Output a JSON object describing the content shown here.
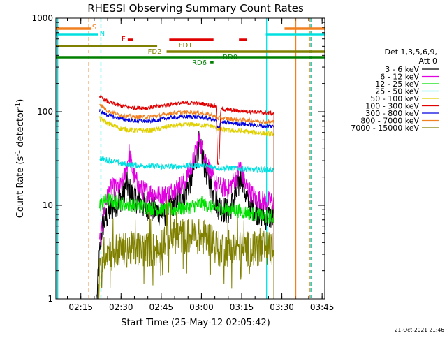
{
  "chart_data": {
    "type": "line",
    "title": "RHESSI Observing Summary Count Rates",
    "xlabel": "Start Time (25-May-12 02:05:42)",
    "ylabel_main": "Count Rate (s",
    "ylabel_sup": "-1",
    "ylabel_tail": " detector",
    "ylabel_end": ")",
    "y_scale": "log",
    "ylim": [
      1,
      1000
    ],
    "y_ticks": [
      {
        "value": 1,
        "label": "1"
      },
      {
        "value": 10,
        "label": "10"
      },
      {
        "value": 100,
        "label": "100"
      },
      {
        "value": 1000,
        "label": "1000"
      }
    ],
    "x_ticks": [
      "02:15",
      "02:30",
      "02:45",
      "03:00",
      "03:15",
      "03:30",
      "03:45"
    ],
    "x_tick_minutes": [
      135,
      150,
      165,
      180,
      195,
      210,
      225
    ],
    "xlim_minutes": [
      125.7,
      226.0
    ],
    "legend_header": [
      "Det 1,3,5,6,9,",
      "Att 0"
    ],
    "footer_date": "21-Oct-2021 21:46",
    "colors": {
      "s_flag": "#f08020",
      "n_flag": "#00e0e0",
      "f_flag": "#e00000",
      "fd_flag": "#808000",
      "rd_flag": "#008000",
      "orbit_dash_orange": "#f08020",
      "orbit_dash_cyan": "#00e0e0"
    },
    "flags": [
      {
        "label": "S",
        "color": "#f08020",
        "label_t": 139.2,
        "label_level": 0,
        "segments": [
          [
            125.7,
            139.0
          ],
          [
            211.0,
            226.0
          ]
        ]
      },
      {
        "label": "N",
        "color": "#00e0e0",
        "label_t": 142.0,
        "label_level": 1,
        "segments": [
          [
            125.7,
            141.5
          ],
          [
            204.0,
            226.0
          ]
        ]
      },
      {
        "label": "F",
        "color": "#e00000",
        "label_t": 150.2,
        "label_level": 2,
        "segments": [
          [
            152.5,
            154.5
          ],
          [
            168.0,
            184.5
          ],
          [
            194.0,
            197.0
          ]
        ]
      },
      {
        "label": "FD1",
        "color": "#808000",
        "label_t": 171.5,
        "label_level": 3,
        "segments": [
          [
            125.7,
            163.5
          ]
        ]
      },
      {
        "label": "FD2",
        "color": "#808000",
        "label_t": 160.0,
        "label_level": 4,
        "segments": [
          [
            167.0,
            226.0
          ]
        ]
      },
      {
        "label": "RD0",
        "color": "#008000",
        "label_t": 188.0,
        "label_level": 5,
        "segments": [
          [
            125.7,
            226.0
          ]
        ]
      },
      {
        "label": "RD6",
        "color": "#008000",
        "label_t": 176.5,
        "label_level": 6,
        "segments": [
          [
            183.3,
            184.5
          ]
        ]
      }
    ],
    "vlines": [
      {
        "t": 126.4,
        "color": "#00e0e0",
        "style": "solid"
      },
      {
        "t": 138.0,
        "color": "#f08020",
        "style": "dash"
      },
      {
        "t": 142.5,
        "color": "#00e0e0",
        "style": "dash"
      },
      {
        "t": 204.3,
        "color": "#00e0e0",
        "style": "solid"
      },
      {
        "t": 215.2,
        "color": "#f08020",
        "style": "solid"
      },
      {
        "t": 220.5,
        "color": "#f08020",
        "style": "dash"
      },
      {
        "t": 220.9,
        "color": "#00e0e0",
        "style": "dash"
      }
    ],
    "series": [
      {
        "name": "3 - 6 keV",
        "color": "#000000",
        "points": [
          [
            141.0,
            1.0
          ],
          [
            142.0,
            3.0
          ],
          [
            143.0,
            6.0
          ],
          [
            146.0,
            9.0
          ],
          [
            150.0,
            12.0
          ],
          [
            152.0,
            17.0
          ],
          [
            154.0,
            13.0
          ],
          [
            158.0,
            10.0
          ],
          [
            162.0,
            9.0
          ],
          [
            166.0,
            8.0
          ],
          [
            170.0,
            11.0
          ],
          [
            174.0,
            14.0
          ],
          [
            177.0,
            22.0
          ],
          [
            179.0,
            45.0
          ],
          [
            181.0,
            28.0
          ],
          [
            184.0,
            14.0
          ],
          [
            186.0,
            10.0
          ],
          [
            190.0,
            8.5
          ],
          [
            193.0,
            13.0
          ],
          [
            195.0,
            22.0
          ],
          [
            197.0,
            11.0
          ],
          [
            200.0,
            9.0
          ],
          [
            204.0,
            7.5
          ],
          [
            207.0,
            7.5
          ]
        ]
      },
      {
        "name": "6 - 12 keV",
        "color": "#e000e0",
        "points": [
          [
            142.0,
            4.0
          ],
          [
            144.0,
            10.0
          ],
          [
            146.0,
            15.0
          ],
          [
            150.0,
            16.0
          ],
          [
            152.0,
            24.0
          ],
          [
            153.0,
            37.0
          ],
          [
            154.5,
            22.0
          ],
          [
            157.0,
            15.0
          ],
          [
            160.0,
            14.0
          ],
          [
            164.0,
            13.0
          ],
          [
            167.0,
            13.0
          ],
          [
            170.0,
            15.0
          ],
          [
            174.0,
            18.0
          ],
          [
            177.0,
            30.0
          ],
          [
            179.0,
            50.0
          ],
          [
            181.0,
            35.0
          ],
          [
            184.0,
            20.0
          ],
          [
            186.0,
            16.0
          ],
          [
            190.0,
            15.0
          ],
          [
            193.0,
            20.0
          ],
          [
            194.5,
            27.0
          ],
          [
            196.0,
            17.0
          ],
          [
            200.0,
            12.0
          ],
          [
            204.0,
            11.0
          ],
          [
            207.0,
            11.0
          ]
        ]
      },
      {
        "name": "12 - 25 keV",
        "color": "#00e000",
        "points": [
          [
            142.0,
            10.0
          ],
          [
            145.0,
            11.5
          ],
          [
            150.0,
            10.5
          ],
          [
            155.0,
            10.0
          ],
          [
            160.0,
            9.5
          ],
          [
            165.0,
            9.0
          ],
          [
            170.0,
            9.0
          ],
          [
            175.0,
            9.5
          ],
          [
            180.0,
            10.5
          ],
          [
            184.0,
            9.5
          ],
          [
            188.0,
            9.0
          ],
          [
            192.0,
            9.0
          ],
          [
            196.0,
            8.5
          ],
          [
            200.0,
            8.0
          ],
          [
            204.0,
            7.5
          ],
          [
            207.0,
            7.5
          ]
        ]
      },
      {
        "name": "25 - 50 keV",
        "color": "#00e0e0",
        "points": [
          [
            142.0,
            32.0
          ],
          [
            146.0,
            30.0
          ],
          [
            150.0,
            28.0
          ],
          [
            155.0,
            27.0
          ],
          [
            160.0,
            26.5
          ],
          [
            165.0,
            26.0
          ],
          [
            170.0,
            26.0
          ],
          [
            175.0,
            26.5
          ],
          [
            180.0,
            27.0
          ],
          [
            184.0,
            25.5
          ],
          [
            186.0,
            25.0
          ],
          [
            190.0,
            25.0
          ],
          [
            195.0,
            24.5
          ],
          [
            200.0,
            24.0
          ],
          [
            204.0,
            24.0
          ],
          [
            207.0,
            24.0
          ]
        ]
      },
      {
        "name": "50 - 100 keV",
        "color": "#e0d000",
        "points": [
          [
            142.0,
            85.0
          ],
          [
            145.0,
            75.0
          ],
          [
            150.0,
            66.0
          ],
          [
            155.0,
            63.0
          ],
          [
            160.0,
            63.0
          ],
          [
            164.0,
            65.0
          ],
          [
            168.0,
            70.0
          ],
          [
            172.0,
            72.0
          ],
          [
            176.0,
            73.0
          ],
          [
            180.0,
            72.0
          ],
          [
            184.0,
            70.0
          ],
          [
            186.5,
            65.0
          ],
          [
            190.0,
            63.0
          ],
          [
            195.0,
            62.0
          ],
          [
            200.0,
            60.0
          ],
          [
            204.0,
            58.0
          ],
          [
            207.0,
            58.0
          ]
        ]
      },
      {
        "name": "100 - 300 keV",
        "color": "#e00000",
        "points": [
          [
            142.0,
            145.0
          ],
          [
            145.0,
            128.0
          ],
          [
            150.0,
            115.0
          ],
          [
            155.0,
            110.0
          ],
          [
            160.0,
            110.0
          ],
          [
            164.0,
            114.0
          ],
          [
            168.0,
            120.0
          ],
          [
            172.0,
            123.0
          ],
          [
            176.0,
            124.0
          ],
          [
            180.0,
            122.0
          ],
          [
            184.0,
            117.0
          ],
          [
            185.5,
            115.0
          ],
          [
            186.0,
            28.0
          ],
          [
            186.6,
            29.0
          ],
          [
            187.2,
            107.0
          ],
          [
            190.0,
            105.0
          ],
          [
            195.0,
            102.0
          ],
          [
            200.0,
            100.0
          ],
          [
            204.0,
            97.0
          ],
          [
            207.0,
            96.0
          ]
        ]
      },
      {
        "name": "300 - 800 keV",
        "color": "#0000e0",
        "points": [
          [
            142.0,
            102.0
          ],
          [
            145.0,
            92.0
          ],
          [
            150.0,
            84.0
          ],
          [
            155.0,
            80.0
          ],
          [
            160.0,
            79.0
          ],
          [
            164.0,
            82.0
          ],
          [
            168.0,
            86.0
          ],
          [
            172.0,
            88.0
          ],
          [
            176.0,
            89.0
          ],
          [
            180.0,
            87.0
          ],
          [
            184.0,
            83.0
          ],
          [
            185.5,
            80.0
          ],
          [
            186.0,
            66.0
          ],
          [
            186.6,
            68.0
          ],
          [
            187.2,
            78.0
          ],
          [
            190.0,
            76.0
          ],
          [
            195.0,
            74.0
          ],
          [
            200.0,
            72.0
          ],
          [
            204.0,
            70.0
          ],
          [
            207.0,
            70.0
          ]
        ]
      },
      {
        "name": "800 - 7000 keV",
        "color": "#f08020",
        "points": [
          [
            142.0,
            122.0
          ],
          [
            145.0,
            102.0
          ],
          [
            150.0,
            92.0
          ],
          [
            155.0,
            88.0
          ],
          [
            160.0,
            88.0
          ],
          [
            164.0,
            91.0
          ],
          [
            168.0,
            96.0
          ],
          [
            172.0,
            98.0
          ],
          [
            176.0,
            99.0
          ],
          [
            180.0,
            97.0
          ],
          [
            184.0,
            92.0
          ],
          [
            185.5,
            88.0
          ],
          [
            186.0,
            85.0
          ],
          [
            187.2,
            86.0
          ],
          [
            190.0,
            84.0
          ],
          [
            195.0,
            82.0
          ],
          [
            200.0,
            80.0
          ],
          [
            204.0,
            78.0
          ],
          [
            207.0,
            78.0
          ]
        ]
      },
      {
        "name": "7000 - 15000 keV",
        "color": "#808000",
        "points": [
          [
            141.5,
            1.4
          ],
          [
            142.5,
            2.2
          ],
          [
            144.0,
            3.3
          ],
          [
            150.0,
            3.3
          ],
          [
            155.0,
            3.4
          ],
          [
            160.0,
            3.4
          ],
          [
            164.0,
            3.3
          ],
          [
            166.0,
            4.2
          ],
          [
            170.0,
            4.7
          ],
          [
            175.0,
            4.7
          ],
          [
            180.0,
            4.6
          ],
          [
            184.0,
            4.3
          ],
          [
            186.0,
            3.4
          ],
          [
            190.0,
            3.4
          ],
          [
            195.0,
            3.4
          ],
          [
            200.0,
            3.4
          ],
          [
            204.0,
            3.4
          ],
          [
            207.0,
            3.4
          ]
        ]
      }
    ]
  }
}
